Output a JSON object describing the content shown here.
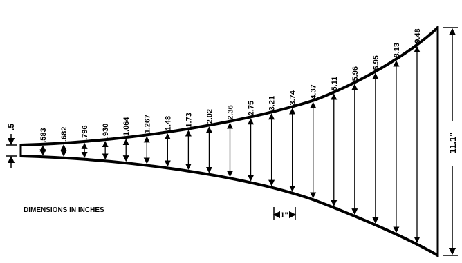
{
  "diagram": {
    "note": "DIMENSIONS IN INCHES",
    "throat_label": ".5",
    "mouth_label": "11.1\"",
    "spacing_label": "1\"",
    "stations": [
      ".583",
      ".682",
      ".796",
      ".930",
      "1.064",
      "1.267",
      "1.48",
      "1.73",
      "2.02",
      "2.36",
      "2.75",
      "3.21",
      "3.74",
      "4.37",
      "5.11",
      "5.96",
      "6.95",
      "8.13",
      "9.48"
    ]
  },
  "colors": {
    "ink": "#000000",
    "paper": "#ffffff"
  }
}
